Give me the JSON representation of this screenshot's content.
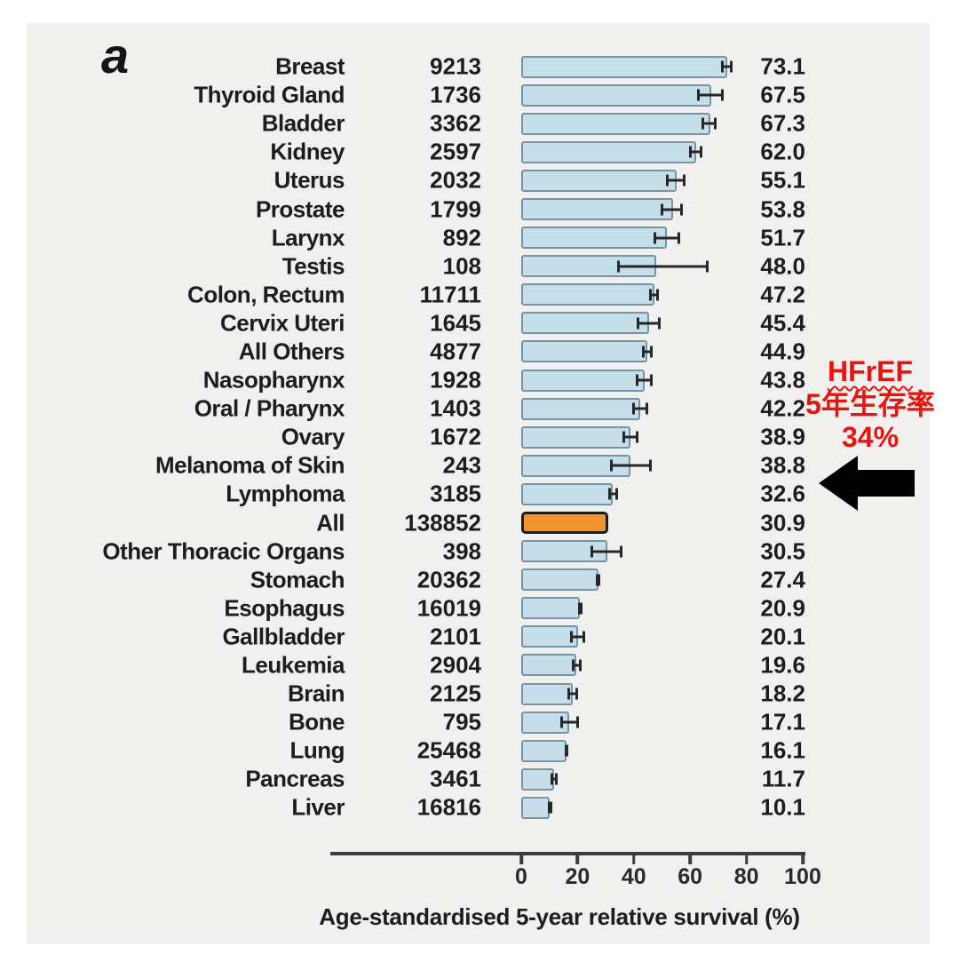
{
  "page": {
    "panel_label": "a"
  },
  "chart_data": {
    "type": "bar",
    "orientation": "horizontal",
    "title": "",
    "xlabel": "Age-standardised 5-year relative survival (%)",
    "ylabel": "",
    "xlim": [
      0,
      100
    ],
    "x_ticks": [
      0,
      20,
      40,
      60,
      80,
      100
    ],
    "grid": false,
    "bar_color": "#c6deea",
    "bar_border_color": "#7595a6",
    "highlight_bar_color": "#f0922d",
    "error_bar_color": "#272727",
    "rows": [
      {
        "name": "Breast",
        "n": "9213",
        "value": 73.1,
        "ci": [
          71.0,
          75.0
        ],
        "highlight": false
      },
      {
        "name": "Thyroid Gland",
        "n": "1736",
        "value": 67.5,
        "ci": [
          62.5,
          72.0
        ],
        "highlight": false
      },
      {
        "name": "Bladder",
        "n": "3362",
        "value": 67.3,
        "ci": [
          64.0,
          69.5
        ],
        "highlight": false
      },
      {
        "name": "Kidney",
        "n": "2597",
        "value": 62.0,
        "ci": [
          59.5,
          64.5
        ],
        "highlight": false
      },
      {
        "name": "Uterus",
        "n": "2032",
        "value": 55.1,
        "ci": [
          51.5,
          58.5
        ],
        "highlight": false
      },
      {
        "name": "Prostate",
        "n": "1799",
        "value": 53.8,
        "ci": [
          49.5,
          57.5
        ],
        "highlight": false
      },
      {
        "name": "Larynx",
        "n": "892",
        "value": 51.7,
        "ci": [
          47.0,
          56.5
        ],
        "highlight": false
      },
      {
        "name": "Testis",
        "n": "108",
        "value": 48.0,
        "ci": [
          34.0,
          66.5
        ],
        "highlight": false
      },
      {
        "name": "Colon, Rectum",
        "n": "11711",
        "value": 47.2,
        "ci": [
          45.5,
          48.8
        ],
        "highlight": false
      },
      {
        "name": "Cervix Uteri",
        "n": "1645",
        "value": 45.4,
        "ci": [
          41.0,
          49.5
        ],
        "highlight": false
      },
      {
        "name": "All Others",
        "n": "4877",
        "value": 44.9,
        "ci": [
          43.0,
          46.8
        ],
        "highlight": false
      },
      {
        "name": "Nasopharynx",
        "n": "1928",
        "value": 43.8,
        "ci": [
          40.8,
          46.8
        ],
        "highlight": false
      },
      {
        "name": "Oral / Pharynx",
        "n": "1403",
        "value": 42.2,
        "ci": [
          39.5,
          45.0
        ],
        "highlight": false
      },
      {
        "name": "Ovary",
        "n": "1672",
        "value": 38.9,
        "ci": [
          36.0,
          41.8
        ],
        "highlight": false
      },
      {
        "name": "Melanoma of Skin",
        "n": "243",
        "value": 38.8,
        "ci": [
          31.5,
          46.5
        ],
        "highlight": false
      },
      {
        "name": "Lymphoma",
        "n": "3185",
        "value": 32.6,
        "ci": [
          30.8,
          34.3
        ],
        "highlight": false
      },
      {
        "name": "All",
        "n": "138852",
        "value": 30.9,
        "ci": null,
        "highlight": true
      },
      {
        "name": "Other Thoracic Organs",
        "n": "398",
        "value": 30.5,
        "ci": [
          24.5,
          36.0
        ],
        "highlight": false
      },
      {
        "name": "Stomach",
        "n": "20362",
        "value": 27.4,
        "ci": [
          26.5,
          28.2
        ],
        "highlight": false
      },
      {
        "name": "Esophagus",
        "n": "16019",
        "value": 20.9,
        "ci": [
          20.1,
          21.8
        ],
        "highlight": false
      },
      {
        "name": "Gallbladder",
        "n": "2101",
        "value": 20.1,
        "ci": [
          17.5,
          22.8
        ],
        "highlight": false
      },
      {
        "name": "Leukemia",
        "n": "2904",
        "value": 19.6,
        "ci": [
          18.0,
          21.5
        ],
        "highlight": false
      },
      {
        "name": "Brain",
        "n": "2125",
        "value": 18.2,
        "ci": [
          16.3,
          20.2
        ],
        "highlight": false
      },
      {
        "name": "Bone",
        "n": "795",
        "value": 17.1,
        "ci": [
          13.8,
          20.5
        ],
        "highlight": false
      },
      {
        "name": "Lung",
        "n": "25468",
        "value": 16.1,
        "ci": [
          15.5,
          16.8
        ],
        "highlight": false
      },
      {
        "name": "Pancreas",
        "n": "3461",
        "value": 11.7,
        "ci": [
          10.4,
          13.0
        ],
        "highlight": false
      },
      {
        "name": "Liver",
        "n": "16816",
        "value": 10.1,
        "ci": [
          9.4,
          10.9
        ],
        "highlight": false
      }
    ]
  },
  "annotation": {
    "line1": "HFrEF",
    "line2": "5年生存率",
    "line3": "34%",
    "text_color": "#e8140f",
    "arrow_color": "#000000",
    "arrow_direction": "left"
  }
}
